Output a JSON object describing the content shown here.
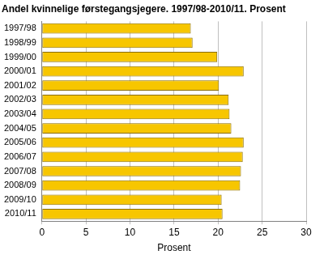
{
  "chart_data": {
    "type": "bar",
    "orientation": "horizontal",
    "title": "Andel kvinnelige førstegangsjegere. 1997/98-2010/11. Prosent",
    "x_label": "Prosent",
    "categories": [
      "1997/98",
      "1998/99",
      "1999/00",
      "2000/01",
      "2001/02",
      "2002/03",
      "2003/04",
      "2004/05",
      "2005/06",
      "2006/07",
      "2007/08",
      "2008/09",
      "2009/10",
      "2010/11"
    ],
    "values": [
      16.9,
      17.1,
      19.9,
      22.9,
      20.1,
      21.2,
      21.3,
      21.5,
      22.9,
      22.8,
      22.6,
      22.5,
      20.4,
      20.5
    ],
    "color": "#f7c600",
    "xlim": [
      0,
      30
    ],
    "xticks": [
      0,
      5,
      10,
      15,
      20,
      25,
      30
    ],
    "grid": true
  }
}
